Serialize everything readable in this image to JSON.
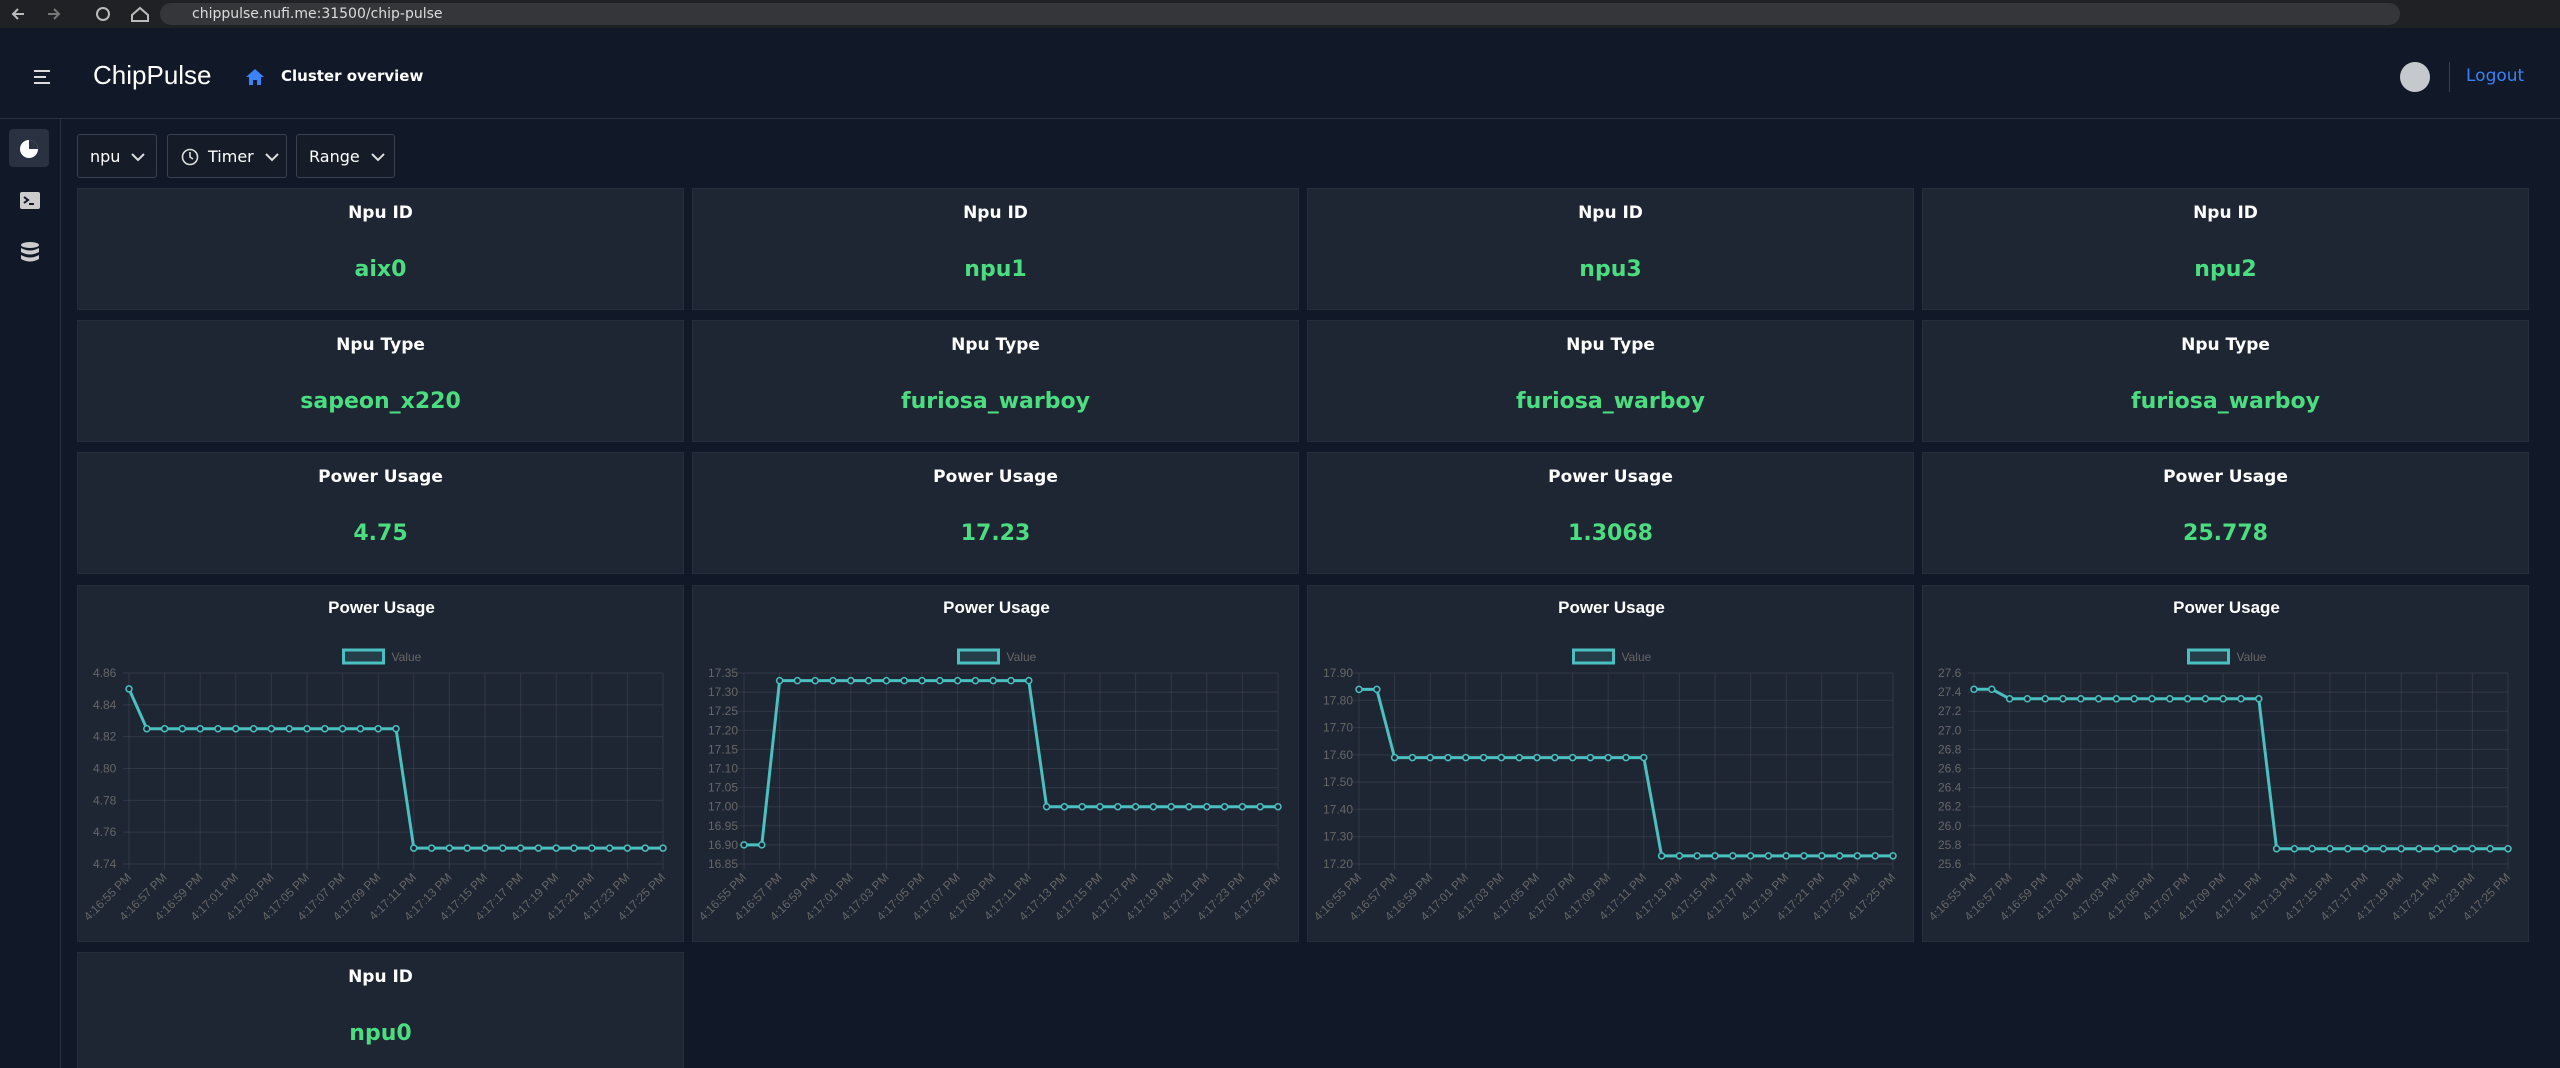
{
  "browser": {
    "url": "chippulse.nufi.me:31500/chip-pulse"
  },
  "header": {
    "title": "ChipPulse",
    "breadcrumb": "Cluster overview",
    "logout": "Logout"
  },
  "filters": [
    "npu",
    "Timer",
    "Range"
  ],
  "cards": [
    {
      "label": "Npu ID",
      "value": "aix0"
    },
    {
      "label": "Npu ID",
      "value": "npu1"
    },
    {
      "label": "Npu ID",
      "value": "npu3"
    },
    {
      "label": "Npu ID",
      "value": "npu2"
    },
    {
      "label": "Npu Type",
      "value": "sapeon_x220"
    },
    {
      "label": "Npu Type",
      "value": "furiosa_warboy"
    },
    {
      "label": "Npu Type",
      "value": "furiosa_warboy"
    },
    {
      "label": "Npu Type",
      "value": "furiosa_warboy"
    },
    {
      "label": "Power Usage",
      "value": 4.75
    },
    {
      "label": "Power Usage",
      "value": 17.23
    },
    {
      "label": "Power Usage",
      "value": 1.3068
    },
    {
      "label": "Power Usage",
      "value": 25.778
    }
  ],
  "charts": [
    {
      "type": "line",
      "title": "Power Usage",
      "legend": "Value",
      "color": "#4bc0c0",
      "categories": [
        "4:16:55 PM",
        null,
        "4:16:57 PM",
        null,
        "4:16:59 PM",
        null,
        "4:17:01 PM",
        null,
        "4:17:03 PM",
        null,
        "4:17:05 PM",
        null,
        "4:17:07 PM",
        null,
        "4:17:09 PM",
        null,
        "4:17:11 PM",
        null,
        "4:17:13 PM",
        null,
        "4:17:15 PM",
        null,
        "4:17:17 PM",
        null,
        "4:17:19 PM",
        null,
        "4:17:21 PM",
        null,
        "4:17:23 PM",
        null,
        "4:17:25 PM"
      ],
      "values": [
        4.85,
        4.825,
        4.825,
        4.825,
        4.825,
        4.825,
        4.825,
        4.825,
        4.825,
        4.825,
        4.825,
        4.825,
        4.825,
        4.825,
        4.825,
        4.825,
        4.75,
        4.75,
        4.75,
        4.75,
        4.75,
        4.75,
        4.75,
        4.75,
        4.75,
        4.75,
        4.75,
        4.75,
        4.75,
        4.75,
        4.75
      ],
      "ylim": [
        4.74,
        4.86
      ],
      "yticks": [
        4.74,
        4.76,
        4.78,
        {
          "value": 4.8,
          "label": "4.80"
        },
        4.82,
        4.84,
        4.86
      ]
    },
    {
      "type": "line",
      "title": "Power Usage",
      "legend": "Value",
      "color": "#4bc0c0",
      "categories": [
        "4:16:55 PM",
        null,
        "4:16:57 PM",
        null,
        "4:16:59 PM",
        null,
        "4:17:01 PM",
        null,
        "4:17:03 PM",
        null,
        "4:17:05 PM",
        null,
        "4:17:07 PM",
        null,
        "4:17:09 PM",
        null,
        "4:17:11 PM",
        null,
        "4:17:13 PM",
        null,
        "4:17:15 PM",
        null,
        "4:17:17 PM",
        null,
        "4:17:19 PM",
        null,
        "4:17:21 PM",
        null,
        "4:17:23 PM",
        null,
        "4:17:25 PM"
      ],
      "values": [
        16.9,
        16.9,
        17.33,
        17.33,
        17.33,
        17.33,
        17.33,
        17.33,
        17.33,
        17.33,
        17.33,
        17.33,
        17.33,
        17.33,
        17.33,
        17.33,
        17.33,
        17.0,
        17.0,
        17.0,
        17.0,
        17.0,
        17.0,
        17.0,
        17.0,
        17.0,
        17.0,
        17.0,
        17.0,
        17.0,
        17.0
      ],
      "ylim": [
        16.85,
        17.35
      ],
      "yticks": [
        16.85,
        {
          "value": 16.9,
          "label": "16.90"
        },
        16.95,
        {
          "value": 17,
          "label": "17.00"
        },
        17.05,
        {
          "value": 17.1,
          "label": "17.10"
        },
        17.15,
        {
          "value": 17.2,
          "label": "17.20"
        },
        17.25,
        {
          "value": 17.3,
          "label": "17.30"
        },
        17.35
      ]
    },
    {
      "type": "line",
      "title": "Power Usage",
      "legend": "Value",
      "color": "#4bc0c0",
      "categories": [
        "4:16:55 PM",
        null,
        "4:16:57 PM",
        null,
        "4:16:59 PM",
        null,
        "4:17:01 PM",
        null,
        "4:17:03 PM",
        null,
        "4:17:05 PM",
        null,
        "4:17:07 PM",
        null,
        "4:17:09 PM",
        null,
        "4:17:11 PM",
        null,
        "4:17:13 PM",
        null,
        "4:17:15 PM",
        null,
        "4:17:17 PM",
        null,
        "4:17:19 PM",
        null,
        "4:17:21 PM",
        null,
        "4:17:23 PM",
        null,
        "4:17:25 PM"
      ],
      "values": [
        17.84,
        17.84,
        17.59,
        17.59,
        17.59,
        17.59,
        17.59,
        17.59,
        17.59,
        17.59,
        17.59,
        17.59,
        17.59,
        17.59,
        17.59,
        17.59,
        17.59,
        17.23,
        17.23,
        17.23,
        17.23,
        17.23,
        17.23,
        17.23,
        17.23,
        17.23,
        17.23,
        17.23,
        17.23,
        17.23,
        17.23
      ],
      "ylim": [
        17.2,
        17.9
      ],
      "yticks": [
        {
          "value": 17.2,
          "label": "17.20"
        },
        {
          "value": 17.3,
          "label": "17.30"
        },
        {
          "value": 17.4,
          "label": "17.40"
        },
        {
          "value": 17.5,
          "label": "17.50"
        },
        {
          "value": 17.6,
          "label": "17.60"
        },
        {
          "value": 17.7,
          "label": "17.70"
        },
        {
          "value": 17.8,
          "label": "17.80"
        },
        {
          "value": 17.9,
          "label": "17.90"
        }
      ]
    },
    {
      "type": "line",
      "title": "Power Usage",
      "legend": "Value",
      "color": "#4bc0c0",
      "categories": [
        "4:16:55 PM",
        null,
        "4:16:57 PM",
        null,
        "4:16:59 PM",
        null,
        "4:17:01 PM",
        null,
        "4:17:03 PM",
        null,
        "4:17:05 PM",
        null,
        "4:17:07 PM",
        null,
        "4:17:09 PM",
        null,
        "4:17:11 PM",
        null,
        "4:17:13 PM",
        null,
        "4:17:15 PM",
        null,
        "4:17:17 PM",
        null,
        "4:17:19 PM",
        null,
        "4:17:21 PM",
        null,
        "4:17:23 PM",
        null,
        "4:17:25 PM"
      ],
      "values": [
        27.43,
        27.43,
        27.33,
        27.33,
        27.33,
        27.33,
        27.33,
        27.33,
        27.33,
        27.33,
        27.33,
        27.33,
        27.33,
        27.33,
        27.33,
        27.33,
        27.33,
        25.76,
        25.76,
        25.76,
        25.76,
        25.76,
        25.76,
        25.76,
        25.76,
        25.76,
        25.76,
        25.76,
        25.76,
        25.76,
        25.76
      ],
      "ylim": [
        25.6,
        27.6
      ],
      "yticks": [
        25.6,
        25.8,
        {
          "value": 26,
          "label": "26.0"
        },
        26.2,
        26.4,
        26.6,
        26.8,
        {
          "value": 27,
          "label": "27.0"
        },
        27.2,
        27.4,
        27.6
      ]
    }
  ],
  "extra_cards": [
    {
      "label": "Npu ID",
      "value": "npu0"
    }
  ]
}
